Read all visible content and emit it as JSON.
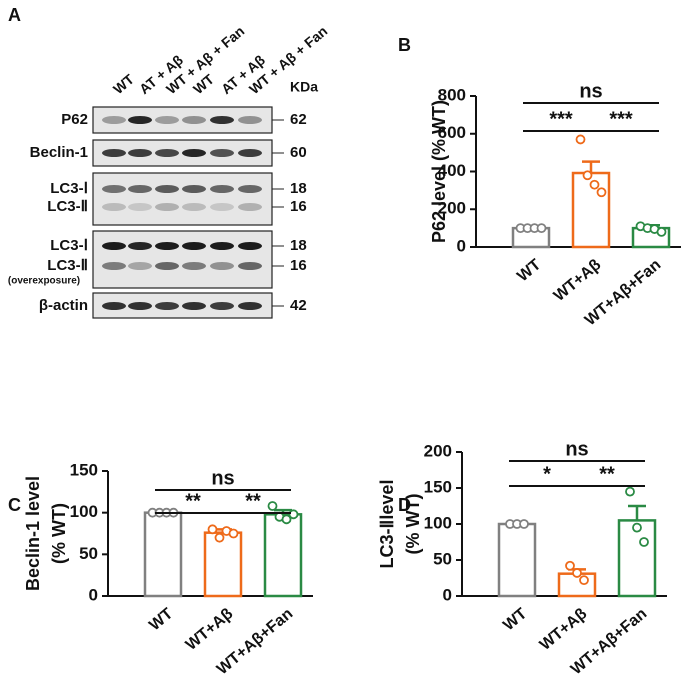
{
  "blot": {
    "panel": "A",
    "lanes": [
      "WT",
      "AT + Aβ",
      "WT + Aβ + Fan",
      "WT",
      "AT + Aβ",
      "WT + Aβ + Fan"
    ],
    "unit": "KDa",
    "rows": [
      {
        "labels": [
          "P62"
        ],
        "kda": [
          "62"
        ]
      },
      {
        "labels": [
          "Beclin-1"
        ],
        "kda": [
          "60"
        ]
      },
      {
        "labels": [
          "LC3-Ⅰ",
          "LC3-Ⅱ"
        ],
        "kda": [
          "18",
          "16"
        ]
      },
      {
        "labels": [
          "LC3-Ⅰ",
          "LC3-Ⅱ"
        ],
        "note": "(overexposure)",
        "kda": [
          "18",
          "16"
        ]
      },
      {
        "labels": [
          "β-actin"
        ],
        "kda": [
          "42"
        ]
      }
    ]
  },
  "chart_data": [
    {
      "type": "bar",
      "panel": "B",
      "ylabel": [
        "P62 level (% WT)"
      ],
      "categories": [
        "WT",
        "WT+Aβ",
        "WT+Aβ+Fan"
      ],
      "values": [
        100,
        392,
        100
      ],
      "errors": [
        0,
        60,
        15
      ],
      "points": [
        [
          100,
          100,
          100,
          100
        ],
        [
          570,
          380,
          330,
          290
        ],
        [
          110,
          100,
          95,
          80
        ]
      ],
      "colors": [
        "#808080",
        "#ee6a1a",
        "#2a8a44"
      ],
      "ylim": [
        0,
        800
      ],
      "yticks": [
        0,
        200,
        400,
        600,
        800
      ],
      "significance": [
        "ns",
        "***",
        "***"
      ]
    },
    {
      "type": "bar",
      "panel": "C",
      "ylabel": [
        "Beclin-1 level",
        "(% WT)"
      ],
      "categories": [
        "WT",
        "WT+Aβ",
        "WT+Aβ+Fan"
      ],
      "values": [
        100,
        76,
        98
      ],
      "errors": [
        0,
        4,
        5
      ],
      "points": [
        [
          100,
          100,
          100,
          100
        ],
        [
          80,
          70,
          78,
          75
        ],
        [
          108,
          95,
          92,
          98
        ]
      ],
      "colors": [
        "#808080",
        "#ee6a1a",
        "#2a8a44"
      ],
      "ylim": [
        0,
        150
      ],
      "yticks": [
        0,
        50,
        100,
        150
      ],
      "significance": [
        "ns",
        "**",
        "**"
      ]
    },
    {
      "type": "bar",
      "panel": "D",
      "ylabel": [
        "LC3-Ⅱlevel",
        "(% WT)"
      ],
      "categories": [
        "WT",
        "WT+Aβ",
        "WT+Aβ+Fan"
      ],
      "values": [
        100,
        31,
        105
      ],
      "errors": [
        0,
        6,
        20
      ],
      "points": [
        [
          100,
          100,
          100
        ],
        [
          42,
          32,
          22
        ],
        [
          145,
          95,
          75
        ]
      ],
      "colors": [
        "#808080",
        "#ee6a1a",
        "#2a8a44"
      ],
      "ylim": [
        0,
        200
      ],
      "yticks": [
        0,
        50,
        100,
        150,
        200
      ],
      "significance": [
        "ns",
        "*",
        "**"
      ]
    }
  ]
}
